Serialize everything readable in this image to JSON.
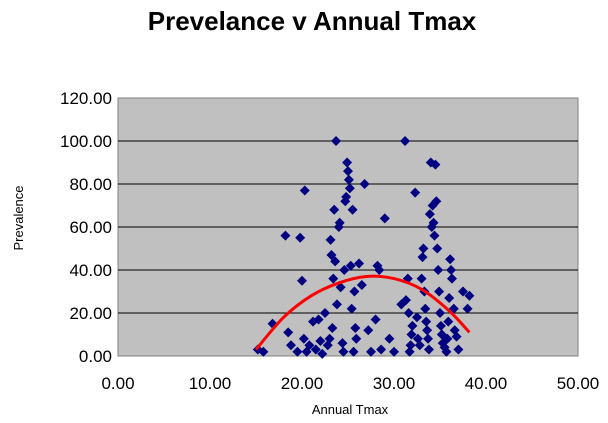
{
  "chart_data": {
    "type": "scatter",
    "title": "Prevelance v Annual Tmax",
    "xlabel": "Annual Tmax",
    "ylabel": "Prevalence",
    "xlim": [
      0,
      50
    ],
    "ylim": [
      0,
      120
    ],
    "x_ticks": [
      "0.00",
      "10.00",
      "20.00",
      "30.00",
      "40.00",
      "50.00"
    ],
    "y_ticks": [
      "0.00",
      "20.00",
      "40.00",
      "60.00",
      "80.00",
      "100.00",
      "120.00"
    ],
    "grid": "horizontal",
    "plot_background": "#c0c0c0",
    "point_color": "#000080",
    "trend_color": "#ff0000",
    "series": [
      {
        "values": [
          [
            15.2,
            3
          ],
          [
            15.8,
            2
          ],
          [
            16.8,
            15
          ],
          [
            18.2,
            56
          ],
          [
            18.5,
            11
          ],
          [
            18.8,
            5
          ],
          [
            19.5,
            2
          ],
          [
            19.8,
            55
          ],
          [
            20.0,
            35
          ],
          [
            20.2,
            8
          ],
          [
            20.3,
            77
          ],
          [
            20.5,
            2
          ],
          [
            20.8,
            5
          ],
          [
            21.2,
            16
          ],
          [
            21.5,
            3
          ],
          [
            21.8,
            17
          ],
          [
            22.0,
            7
          ],
          [
            22.2,
            1
          ],
          [
            22.5,
            20
          ],
          [
            22.8,
            5
          ],
          [
            23.0,
            8
          ],
          [
            23.1,
            54
          ],
          [
            23.2,
            47
          ],
          [
            23.3,
            13
          ],
          [
            23.4,
            36
          ],
          [
            23.5,
            68
          ],
          [
            23.6,
            44
          ],
          [
            23.7,
            100
          ],
          [
            23.8,
            24
          ],
          [
            24.0,
            60
          ],
          [
            24.1,
            62
          ],
          [
            24.2,
            32
          ],
          [
            24.4,
            6
          ],
          [
            24.5,
            2
          ],
          [
            24.6,
            40
          ],
          [
            24.7,
            72
          ],
          [
            24.8,
            74
          ],
          [
            24.9,
            90
          ],
          [
            25.0,
            86
          ],
          [
            25.1,
            82
          ],
          [
            25.2,
            78
          ],
          [
            25.3,
            42
          ],
          [
            25.4,
            22
          ],
          [
            25.5,
            68
          ],
          [
            25.6,
            2
          ],
          [
            25.7,
            30
          ],
          [
            25.8,
            13
          ],
          [
            25.9,
            8
          ],
          [
            26.2,
            43
          ],
          [
            26.5,
            33
          ],
          [
            26.8,
            80
          ],
          [
            27.2,
            12
          ],
          [
            27.5,
            2
          ],
          [
            28.0,
            17
          ],
          [
            28.2,
            42
          ],
          [
            28.4,
            40
          ],
          [
            28.6,
            3
          ],
          [
            29.0,
            64
          ],
          [
            29.5,
            8
          ],
          [
            30.0,
            2
          ],
          [
            30.8,
            24
          ],
          [
            31.2,
            100
          ],
          [
            31.3,
            26
          ],
          [
            31.5,
            36
          ],
          [
            31.6,
            20
          ],
          [
            31.7,
            2
          ],
          [
            31.8,
            5
          ],
          [
            31.9,
            10
          ],
          [
            32.0,
            14
          ],
          [
            32.3,
            76
          ],
          [
            32.5,
            18
          ],
          [
            32.6,
            8
          ],
          [
            32.8,
            5
          ],
          [
            33.0,
            36
          ],
          [
            33.1,
            46
          ],
          [
            33.2,
            50
          ],
          [
            33.3,
            30
          ],
          [
            33.4,
            22
          ],
          [
            33.5,
            16
          ],
          [
            33.6,
            12
          ],
          [
            33.7,
            8
          ],
          [
            33.8,
            3
          ],
          [
            33.9,
            66
          ],
          [
            34.0,
            90
          ],
          [
            34.1,
            60
          ],
          [
            34.2,
            70
          ],
          [
            34.3,
            62
          ],
          [
            34.4,
            56
          ],
          [
            34.5,
            89
          ],
          [
            34.6,
            72
          ],
          [
            34.7,
            50
          ],
          [
            34.8,
            40
          ],
          [
            34.9,
            30
          ],
          [
            35.0,
            20
          ],
          [
            35.1,
            14
          ],
          [
            35.2,
            10
          ],
          [
            35.3,
            6
          ],
          [
            35.5,
            4
          ],
          [
            35.7,
            2
          ],
          [
            35.8,
            8
          ],
          [
            35.9,
            16
          ],
          [
            36.0,
            27
          ],
          [
            36.1,
            45
          ],
          [
            36.2,
            40
          ],
          [
            36.3,
            36
          ],
          [
            36.5,
            22
          ],
          [
            36.6,
            12
          ],
          [
            36.8,
            9
          ],
          [
            37.0,
            3
          ],
          [
            37.5,
            30
          ],
          [
            38.0,
            22
          ],
          [
            38.2,
            28
          ]
        ]
      }
    ],
    "trend": {
      "type": "polynomial",
      "x_range": [
        15,
        38.2
      ],
      "points": [
        [
          15,
          3
        ],
        [
          18,
          18
        ],
        [
          21,
          28
        ],
        [
          24,
          34
        ],
        [
          27,
          37
        ],
        [
          30,
          36
        ],
        [
          33,
          31
        ],
        [
          36,
          21
        ],
        [
          38.2,
          11
        ]
      ]
    }
  }
}
